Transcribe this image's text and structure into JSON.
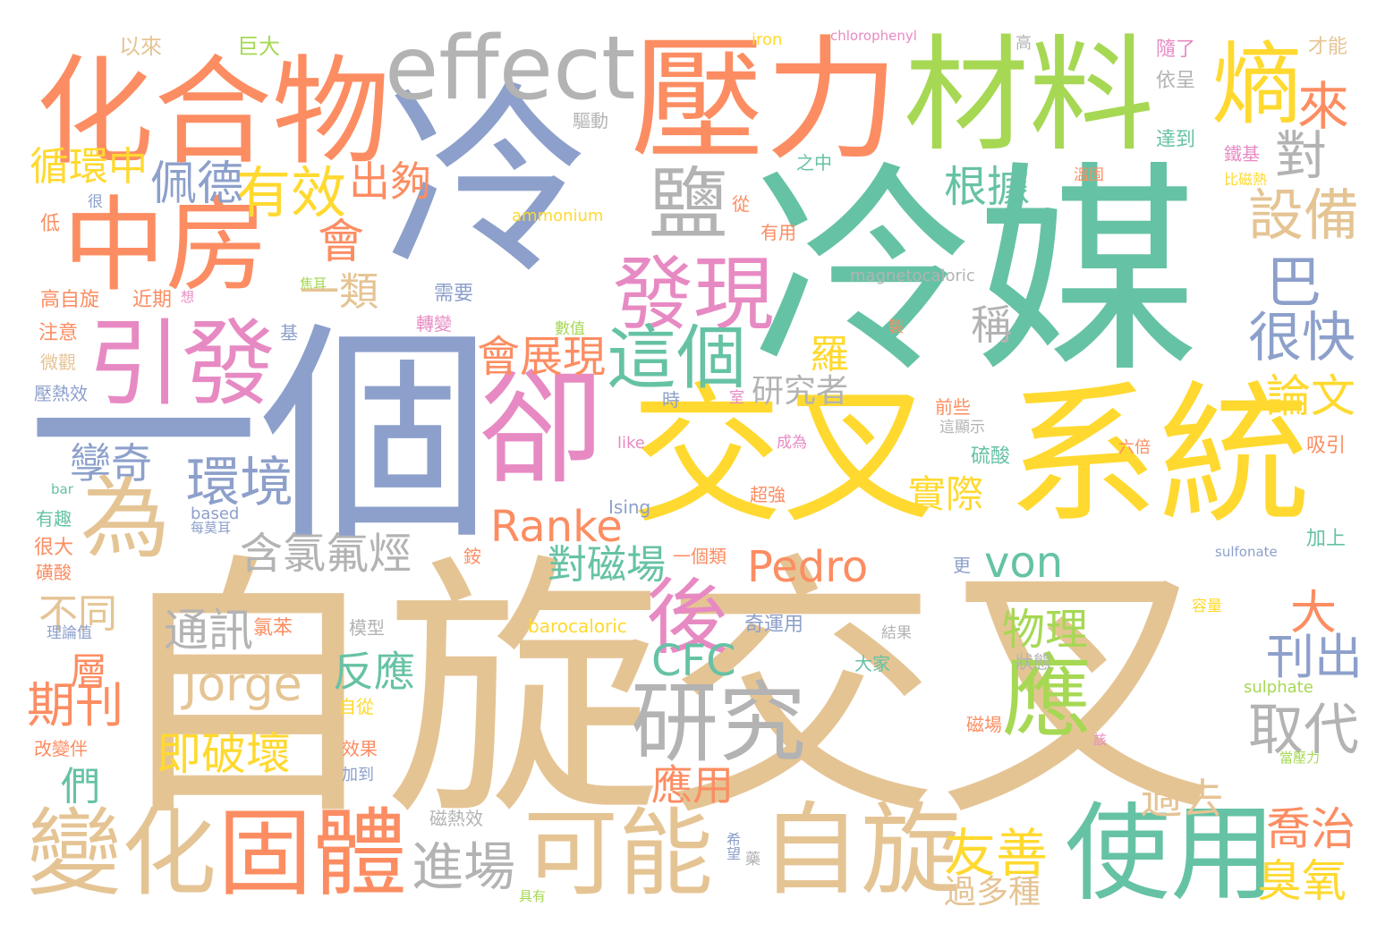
{
  "palette": {
    "orange": "#fc8d62",
    "blue": "#8da0cb",
    "teal": "#66c2a5",
    "tan": "#e5c494",
    "yellow": "#ffd92f",
    "green": "#a6d854",
    "pink": "#e78ac3",
    "gray": "#b3b3b3"
  },
  "words": [
    {
      "text": "自旋交叉",
      "color": "tan"
    },
    {
      "text": "冷媒",
      "color": "teal"
    },
    {
      "text": "冷",
      "color": "blue"
    },
    {
      "text": "一個",
      "color": "blue"
    },
    {
      "text": "交叉",
      "color": "yellow"
    },
    {
      "text": "系統",
      "color": "yellow"
    },
    {
      "text": "壓力",
      "color": "orange"
    },
    {
      "text": "材料",
      "color": "green"
    },
    {
      "text": "化合物",
      "color": "orange"
    },
    {
      "text": "中房",
      "color": "orange"
    },
    {
      "text": "effect",
      "color": "gray"
    },
    {
      "text": "引發",
      "color": "pink"
    },
    {
      "text": "卻",
      "color": "pink"
    },
    {
      "text": "為",
      "color": "tan"
    },
    {
      "text": "變化",
      "color": "tan"
    },
    {
      "text": "固體",
      "color": "orange"
    },
    {
      "text": "可能",
      "color": "tan"
    },
    {
      "text": "自旋",
      "color": "tan"
    },
    {
      "text": "使用",
      "color": "teal"
    },
    {
      "text": "研究",
      "color": "gray"
    },
    {
      "text": "應",
      "color": "green"
    },
    {
      "text": "後",
      "color": "pink"
    },
    {
      "text": "發現",
      "color": "pink"
    },
    {
      "text": "這個",
      "color": "teal"
    },
    {
      "text": "鹽",
      "color": "gray"
    },
    {
      "text": "熵",
      "color": "yellow"
    },
    {
      "text": "來",
      "color": "orange"
    },
    {
      "text": "對",
      "color": "gray"
    },
    {
      "text": "設備",
      "color": "tan"
    },
    {
      "text": "巴",
      "color": "blue"
    },
    {
      "text": "很快",
      "color": "blue"
    },
    {
      "text": "論文",
      "color": "yellow"
    },
    {
      "text": "取代",
      "color": "gray"
    },
    {
      "text": "刊出",
      "color": "blue"
    },
    {
      "text": "大",
      "color": "orange"
    },
    {
      "text": "喬治",
      "color": "orange"
    },
    {
      "text": "臭氧",
      "color": "yellow"
    },
    {
      "text": "過去",
      "color": "tan"
    },
    {
      "text": "有效",
      "color": "yellow"
    },
    {
      "text": "出夠",
      "color": "orange"
    },
    {
      "text": "佩德",
      "color": "blue"
    },
    {
      "text": "循環中",
      "color": "yellow"
    },
    {
      "text": "會",
      "color": "orange"
    },
    {
      "text": "一類",
      "color": "tan"
    },
    {
      "text": "環境",
      "color": "blue"
    },
    {
      "text": "孿奇",
      "color": "blue"
    },
    {
      "text": "含氯氟烴",
      "color": "gray"
    },
    {
      "text": "會展現",
      "color": "orange"
    },
    {
      "text": "Ranke",
      "color": "orange"
    },
    {
      "text": "對磁場",
      "color": "teal"
    },
    {
      "text": "Pedro",
      "color": "orange"
    },
    {
      "text": "von",
      "color": "teal"
    },
    {
      "text": "通訊",
      "color": "gray"
    },
    {
      "text": "Jorge",
      "color": "tan"
    },
    {
      "text": "即破壞",
      "color": "yellow"
    },
    {
      "text": "CFC",
      "color": "teal"
    },
    {
      "text": "物理",
      "color": "green"
    },
    {
      "text": "反應",
      "color": "teal"
    },
    {
      "text": "應用",
      "color": "orange"
    },
    {
      "text": "期刊",
      "color": "orange"
    },
    {
      "text": "層",
      "color": "orange"
    },
    {
      "text": "們",
      "color": "teal"
    },
    {
      "text": "不同",
      "color": "tan"
    },
    {
      "text": "進場",
      "color": "gray"
    },
    {
      "text": "友善",
      "color": "yellow"
    },
    {
      "text": "過多種",
      "color": "tan"
    },
    {
      "text": "根據",
      "color": "teal"
    },
    {
      "text": "稱",
      "color": "gray"
    },
    {
      "text": "羅",
      "color": "yellow"
    },
    {
      "text": "研究者",
      "color": "gray"
    },
    {
      "text": "實際",
      "color": "yellow"
    },
    {
      "text": "magnetocaloric",
      "color": "gray"
    },
    {
      "text": "ammonium",
      "color": "yellow"
    },
    {
      "text": "iron",
      "color": "yellow"
    },
    {
      "text": "chlorophenyl",
      "color": "pink"
    },
    {
      "text": "like",
      "color": "pink"
    },
    {
      "text": "Ising",
      "color": "blue"
    },
    {
      "text": "based",
      "color": "blue"
    },
    {
      "text": "bar",
      "color": "teal"
    },
    {
      "text": "barocaloric",
      "color": "yellow"
    },
    {
      "text": "sulphate",
      "color": "green"
    },
    {
      "text": "sulfonate",
      "color": "blue"
    },
    {
      "text": "以來",
      "color": "tan"
    },
    {
      "text": "巨大",
      "color": "green"
    },
    {
      "text": "高",
      "color": "gray"
    },
    {
      "text": "隨了",
      "color": "pink"
    },
    {
      "text": "才能",
      "color": "tan"
    },
    {
      "text": "依呈",
      "color": "gray"
    },
    {
      "text": "驅動",
      "color": "gray"
    },
    {
      "text": "達到",
      "color": "teal"
    },
    {
      "text": "之中",
      "color": "teal"
    },
    {
      "text": "鐵基",
      "color": "pink"
    },
    {
      "text": "溫固",
      "color": "orange"
    },
    {
      "text": "比磁熱",
      "color": "yellow"
    },
    {
      "text": "低",
      "color": "orange"
    },
    {
      "text": "很",
      "color": "blue"
    },
    {
      "text": "從",
      "color": "orange"
    },
    {
      "text": "有用",
      "color": "orange"
    },
    {
      "text": "高自旋",
      "color": "orange"
    },
    {
      "text": "近期",
      "color": "orange"
    },
    {
      "text": "想",
      "color": "pink"
    },
    {
      "text": "焦耳",
      "color": "green"
    },
    {
      "text": "需要",
      "color": "blue"
    },
    {
      "text": "注意",
      "color": "orange"
    },
    {
      "text": "基",
      "color": "blue"
    },
    {
      "text": "數值",
      "color": "green"
    },
    {
      "text": "轉變",
      "color": "pink"
    },
    {
      "text": "製",
      "color": "orange"
    },
    {
      "text": "微觀",
      "color": "tan"
    },
    {
      "text": "壓熱效",
      "color": "blue"
    },
    {
      "text": "時",
      "color": "blue"
    },
    {
      "text": "室",
      "color": "pink"
    },
    {
      "text": "前些",
      "color": "orange"
    },
    {
      "text": "這顯示",
      "color": "gray"
    },
    {
      "text": "吸引",
      "color": "orange"
    },
    {
      "text": "硫酸",
      "color": "teal"
    },
    {
      "text": "六倍",
      "color": "orange"
    },
    {
      "text": "成為",
      "color": "pink"
    },
    {
      "text": "超強",
      "color": "orange"
    },
    {
      "text": "有趣",
      "color": "teal"
    },
    {
      "text": "每莫耳",
      "color": "blue"
    },
    {
      "text": "很大",
      "color": "orange"
    },
    {
      "text": "磺酸",
      "color": "orange"
    },
    {
      "text": "銨",
      "color": "orange"
    },
    {
      "text": "一個類",
      "color": "orange"
    },
    {
      "text": "更",
      "color": "blue"
    },
    {
      "text": "加上",
      "color": "teal"
    },
    {
      "text": "容量",
      "color": "yellow"
    },
    {
      "text": "理論值",
      "color": "blue"
    },
    {
      "text": "氯苯",
      "color": "orange"
    },
    {
      "text": "模型",
      "color": "gray"
    },
    {
      "text": "奇運用",
      "color": "blue"
    },
    {
      "text": "結果",
      "color": "gray"
    },
    {
      "text": "大家",
      "color": "teal"
    },
    {
      "text": "狀態",
      "color": "gray"
    },
    {
      "text": "自從",
      "color": "yellow"
    },
    {
      "text": "改變伴",
      "color": "orange"
    },
    {
      "text": "效果",
      "color": "orange"
    },
    {
      "text": "加到",
      "color": "blue"
    },
    {
      "text": "磁熱效",
      "color": "gray"
    },
    {
      "text": "磁場",
      "color": "orange"
    },
    {
      "text": "該",
      "color": "pink"
    },
    {
      "text": "當壓力",
      "color": "green"
    },
    {
      "text": "希望",
      "color": "blue"
    },
    {
      "text": "藥",
      "color": "gray"
    },
    {
      "text": "具有",
      "color": "green"
    }
  ]
}
